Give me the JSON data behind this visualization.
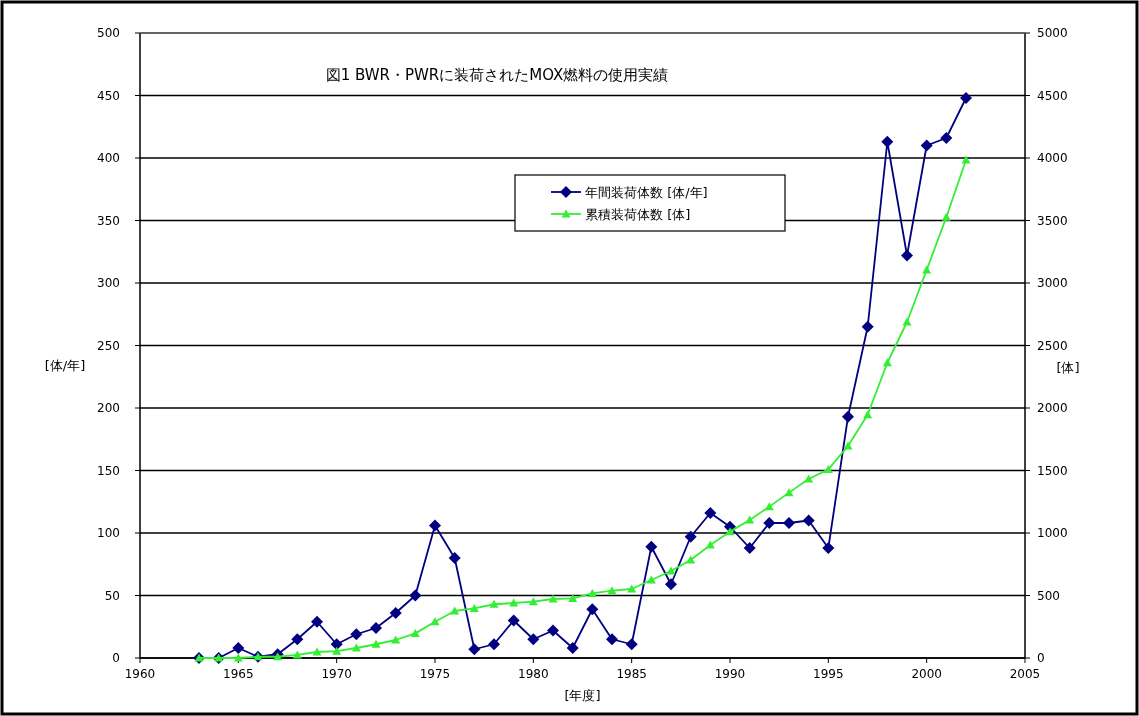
{
  "chart_data": {
    "type": "line",
    "title": "図1 BWR・PWRに装荷されたMOX燃料の使用実績",
    "xlabel": "[年度]",
    "ylabel": "[体/年]",
    "y2label": "[体]",
    "x": [
      1963,
      1964,
      1965,
      1966,
      1967,
      1968,
      1969,
      1970,
      1971,
      1972,
      1973,
      1974,
      1975,
      1976,
      1977,
      1978,
      1979,
      1980,
      1981,
      1982,
      1983,
      1984,
      1985,
      1986,
      1987,
      1988,
      1989,
      1990,
      1991,
      1992,
      1993,
      1994,
      1995,
      1996,
      1997,
      1998,
      1999,
      2000,
      2001,
      2002
    ],
    "series": [
      {
        "name": "年間装荷体数 [体/年]",
        "color": "#000080",
        "marker": "diamond",
        "values": [
          0,
          0,
          8,
          1,
          3,
          15,
          29,
          11,
          19,
          24,
          36,
          50,
          106,
          80,
          7,
          11,
          30,
          15,
          22,
          8,
          39,
          15,
          11,
          89,
          59,
          97,
          116,
          105,
          88,
          108,
          108,
          110,
          88,
          193,
          265,
          413,
          322,
          410,
          416,
          448
        ]
      },
      {
        "name": "累積装荷体数 [体]",
        "color": "#33ee33",
        "marker": "triangle",
        "axis": "y2",
        "values": [
          0,
          0,
          0,
          10,
          10,
          25,
          48,
          55,
          80,
          110,
          144,
          197,
          290,
          376,
          397,
          430,
          440,
          451,
          472,
          477,
          517,
          539,
          552,
          624,
          696,
          784,
          904,
          1011,
          1104,
          1211,
          1323,
          1432,
          1509,
          1696,
          1946,
          2362,
          2688,
          3104,
          3526,
          3984
        ]
      }
    ],
    "xlim": [
      1960,
      2005
    ],
    "xticks": [
      1960,
      1965,
      1970,
      1975,
      1980,
      1985,
      1990,
      1995,
      2000,
      2005
    ],
    "ylim": [
      0,
      500
    ],
    "yticks": [
      0,
      50,
      100,
      150,
      200,
      250,
      300,
      350,
      400,
      450,
      500
    ],
    "y2lim": [
      0,
      5000
    ],
    "y2ticks": [
      0,
      500,
      1000,
      1500,
      2000,
      2500,
      3000,
      3500,
      4000,
      4500,
      5000
    ],
    "grid": "y",
    "legend": "top"
  }
}
